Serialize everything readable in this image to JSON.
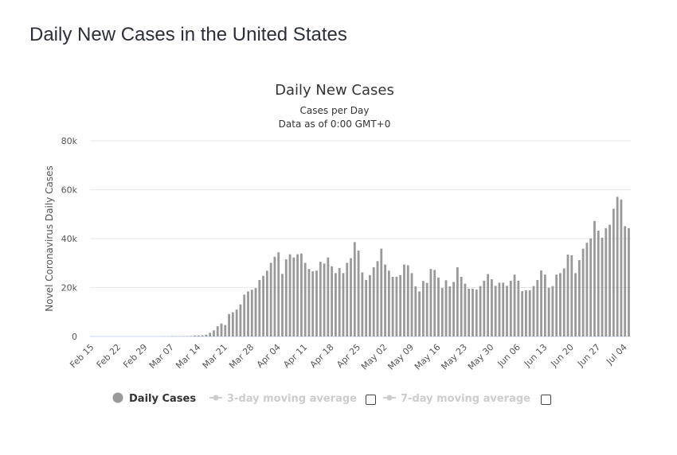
{
  "page": {
    "title": "Daily New Cases in the United States"
  },
  "chart_data": {
    "type": "bar",
    "title": "Daily New Cases",
    "subtitle_lines": [
      "Cases per Day",
      "Data as of 0:00 GMT+0"
    ],
    "ylabel": "Novel Coronavirus Daily Cases",
    "xlabel": "",
    "ylim": [
      0,
      80000
    ],
    "yticks": [
      0,
      20000,
      40000,
      60000,
      80000
    ],
    "ytick_labels": [
      "0",
      "20k",
      "40k",
      "60k",
      "80k"
    ],
    "grid": true,
    "bar_color": "#999999",
    "xtick_labels": [
      "Feb 15",
      "Feb 22",
      "Feb 29",
      "Mar 07",
      "Mar 14",
      "Mar 21",
      "Mar 28",
      "Apr 04",
      "Apr 11",
      "Apr 18",
      "Apr 25",
      "May 02",
      "May 09",
      "May 16",
      "May 23",
      "May 30",
      "Jun 06",
      "Jun 13",
      "Jun 20",
      "Jun 27",
      "Jul 04"
    ],
    "categories": [
      "Feb 15",
      "Feb 16",
      "Feb 17",
      "Feb 18",
      "Feb 19",
      "Feb 20",
      "Feb 21",
      "Feb 22",
      "Feb 23",
      "Feb 24",
      "Feb 25",
      "Feb 26",
      "Feb 27",
      "Feb 28",
      "Feb 29",
      "Mar 01",
      "Mar 02",
      "Mar 03",
      "Mar 04",
      "Mar 05",
      "Mar 06",
      "Mar 07",
      "Mar 08",
      "Mar 09",
      "Mar 10",
      "Mar 11",
      "Mar 12",
      "Mar 13",
      "Mar 14",
      "Mar 15",
      "Mar 16",
      "Mar 17",
      "Mar 18",
      "Mar 19",
      "Mar 20",
      "Mar 21",
      "Mar 22",
      "Mar 23",
      "Mar 24",
      "Mar 25",
      "Mar 26",
      "Mar 27",
      "Mar 28",
      "Mar 29",
      "Mar 30",
      "Mar 31",
      "Apr 01",
      "Apr 02",
      "Apr 03",
      "Apr 04",
      "Apr 05",
      "Apr 06",
      "Apr 07",
      "Apr 08",
      "Apr 09",
      "Apr 10",
      "Apr 11",
      "Apr 12",
      "Apr 13",
      "Apr 14",
      "Apr 15",
      "Apr 16",
      "Apr 17",
      "Apr 18",
      "Apr 19",
      "Apr 20",
      "Apr 21",
      "Apr 22",
      "Apr 23",
      "Apr 24",
      "Apr 25",
      "Apr 26",
      "Apr 27",
      "Apr 28",
      "Apr 29",
      "Apr 30",
      "May 01",
      "May 02",
      "May 03",
      "May 04",
      "May 05",
      "May 06",
      "May 07",
      "May 08",
      "May 09",
      "May 10",
      "May 11",
      "May 12",
      "May 13",
      "May 14",
      "May 15",
      "May 16",
      "May 17",
      "May 18",
      "May 19",
      "May 20",
      "May 21",
      "May 22",
      "May 23",
      "May 24",
      "May 25",
      "May 26",
      "May 27",
      "May 28",
      "May 29",
      "May 30",
      "May 31",
      "Jun 01",
      "Jun 02",
      "Jun 03",
      "Jun 04",
      "Jun 05",
      "Jun 06",
      "Jun 07",
      "Jun 08",
      "Jun 09",
      "Jun 10",
      "Jun 11",
      "Jun 12",
      "Jun 13",
      "Jun 14",
      "Jun 15",
      "Jun 16",
      "Jun 17",
      "Jun 18",
      "Jun 19",
      "Jun 20",
      "Jun 21",
      "Jun 22",
      "Jun 23",
      "Jun 24",
      "Jun 25",
      "Jun 26",
      "Jun 27",
      "Jun 28",
      "Jun 29",
      "Jun 30",
      "Jul 01",
      "Jul 02",
      "Jul 03",
      "Jul 04",
      "Jul 05"
    ],
    "series": [
      {
        "name": "Daily Cases",
        "values": [
          0,
          0,
          0,
          0,
          0,
          0,
          0,
          0,
          0,
          0,
          1,
          0,
          0,
          1,
          5,
          8,
          20,
          22,
          31,
          68,
          45,
          140,
          116,
          65,
          120,
          150,
          180,
          400,
          400,
          450,
          750,
          1500,
          2500,
          4200,
          5300,
          4700,
          9200,
          9900,
          11000,
          13100,
          17100,
          18400,
          19100,
          19800,
          23100,
          24800,
          26900,
          30100,
          32600,
          34400,
          25600,
          31500,
          33600,
          32300,
          33600,
          33900,
          30100,
          27600,
          26600,
          26900,
          30500,
          29800,
          32300,
          28700,
          25900,
          28000,
          25900,
          30100,
          32000,
          38600,
          35100,
          26200,
          23100,
          25100,
          28300,
          30800,
          35900,
          29400,
          26900,
          24400,
          24400,
          25100,
          29400,
          29100,
          25900,
          20500,
          18400,
          22700,
          21900,
          27600,
          27200,
          24100,
          19800,
          23000,
          20500,
          22300,
          28300,
          24400,
          21600,
          19500,
          19500,
          19200,
          20600,
          22800,
          25500,
          23400,
          20700,
          22000,
          22000,
          20700,
          22800,
          25300,
          22800,
          18500,
          18900,
          18900,
          20600,
          23100,
          27000,
          25300,
          19900,
          20600,
          25300,
          25900,
          27800,
          33500,
          33200,
          25900,
          31200,
          35900,
          38300,
          40100,
          47200,
          43300,
          40400,
          44300,
          45700,
          52200,
          57100,
          56000,
          45100,
          44300
        ]
      }
    ],
    "legend": {
      "position": "bottom",
      "items": [
        {
          "label": "Daily Cases",
          "active": true,
          "color": "#999999"
        },
        {
          "label": "3-day moving average",
          "active": false,
          "color": "#cccccc"
        },
        {
          "label": "7-day moving average",
          "active": false,
          "color": "#cccccc"
        }
      ]
    }
  }
}
